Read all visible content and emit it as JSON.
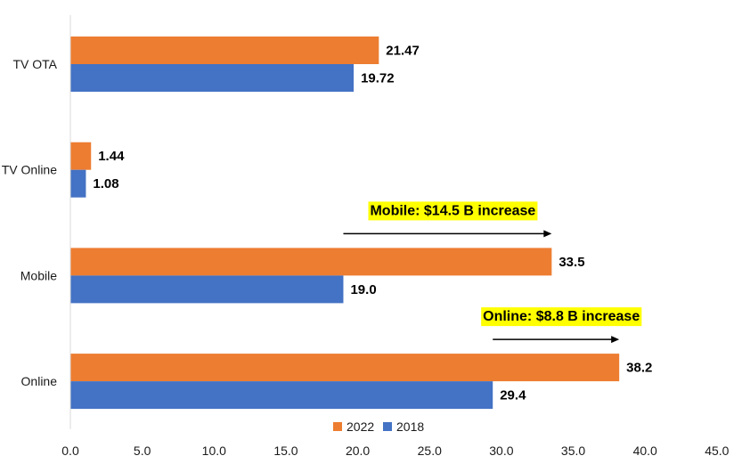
{
  "chart_data": {
    "type": "bar",
    "orientation": "horizontal",
    "categories": [
      "TV OTA",
      "TV Online",
      "Mobile",
      "Online"
    ],
    "series": [
      {
        "name": "2022",
        "color": "#ed7d31",
        "values": [
          21.47,
          1.44,
          33.5,
          38.2
        ],
        "labels": [
          "21.47",
          "1.44",
          "33.5",
          "38.2"
        ]
      },
      {
        "name": "2018",
        "color": "#4472c4",
        "values": [
          19.72,
          1.08,
          19.0,
          29.4
        ],
        "labels": [
          "19.72",
          "1.08",
          "19.0",
          "29.4"
        ]
      }
    ],
    "xlim": [
      0,
      45
    ],
    "x_ticks": [
      0,
      5,
      10,
      15,
      20,
      25,
      30,
      35,
      40,
      45
    ],
    "x_tick_labels": [
      "0.0",
      "5.0",
      "10.0",
      "15.0",
      "20.0",
      "25.0",
      "30.0",
      "35.0",
      "40.0",
      "45.0"
    ],
    "grid": false,
    "legend_position": "bottom",
    "annotations": [
      {
        "text": "Mobile: $14.5 B increase",
        "category": "Mobile",
        "arrow_from": 19.0,
        "arrow_to": 33.5,
        "highlight": "#ffff00"
      },
      {
        "text": "Online: $8.8 B increase",
        "category": "Online",
        "arrow_from": 29.4,
        "arrow_to": 38.2,
        "highlight": "#ffff00"
      }
    ]
  }
}
